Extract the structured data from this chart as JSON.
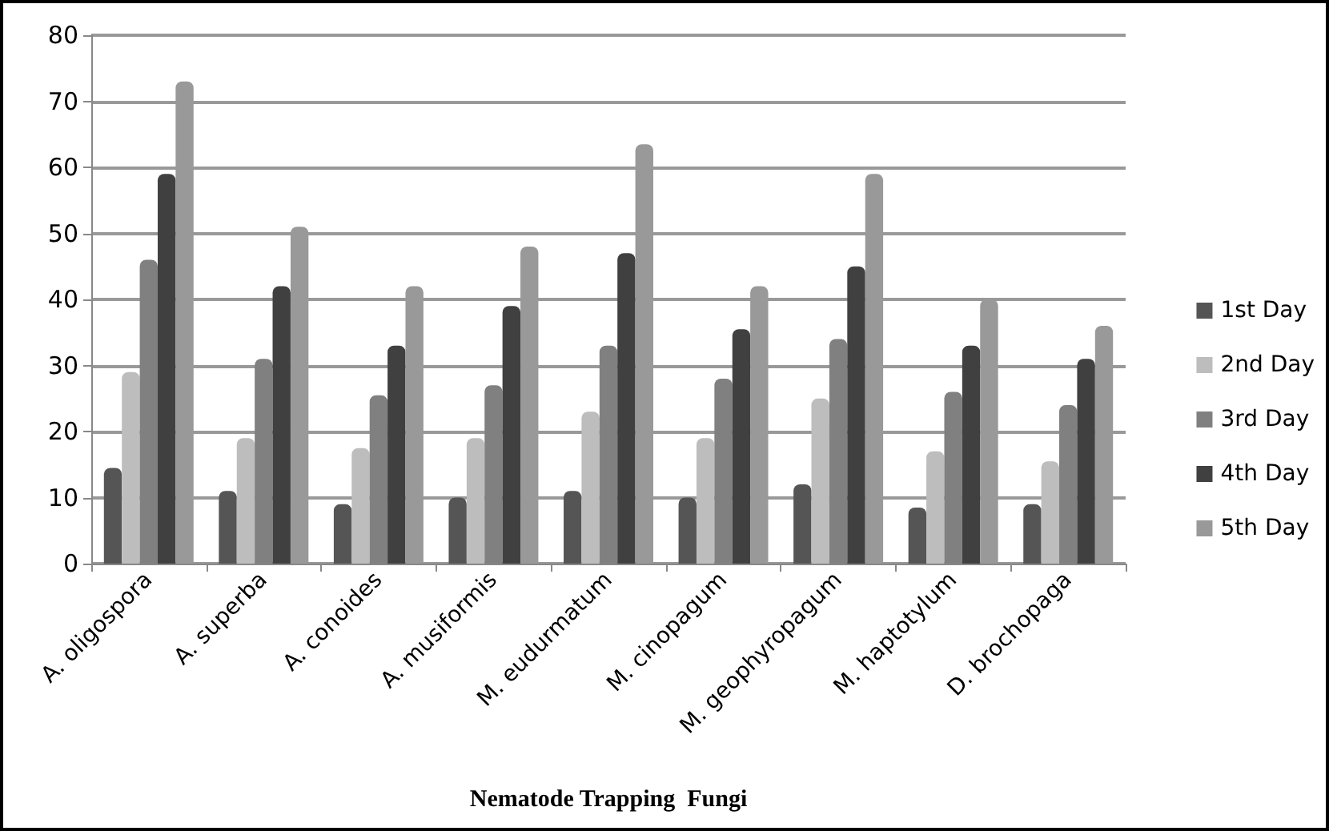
{
  "chart_data": {
    "type": "bar",
    "xlabel": "Nematode Trapping  Fungi",
    "categories": [
      "A. oligospora",
      "A. superba",
      "A. conoides",
      "A. musiformis",
      "M. eudurmatum",
      "M. cinopagum",
      "M. geophyropagum",
      "M. haptotylum",
      "D. brochopaga"
    ],
    "series": [
      {
        "name": "1st Day",
        "color": "#555555",
        "values": [
          14.5,
          11,
          9,
          10,
          11,
          10,
          12,
          8.5,
          9
        ]
      },
      {
        "name": "2nd Day",
        "color": "#bdbdbd",
        "values": [
          29,
          19,
          17.5,
          19,
          23,
          19,
          25,
          17,
          15.5
        ]
      },
      {
        "name": "3rd Day",
        "color": "#808080",
        "values": [
          46,
          31,
          25.5,
          27,
          33,
          28,
          34,
          26,
          24
        ]
      },
      {
        "name": "4th Day",
        "color": "#404040",
        "values": [
          59,
          42,
          33,
          39,
          47,
          35.5,
          45,
          33,
          31
        ]
      },
      {
        "name": "5th Day",
        "color": "#999999",
        "values": [
          73,
          51,
          42,
          48,
          63.5,
          42,
          59,
          40,
          36
        ]
      }
    ],
    "ylim": [
      0,
      80
    ],
    "yticks": [
      0,
      10,
      20,
      30,
      40,
      50,
      60,
      70,
      80
    ],
    "grid": "y",
    "legend": "right"
  }
}
